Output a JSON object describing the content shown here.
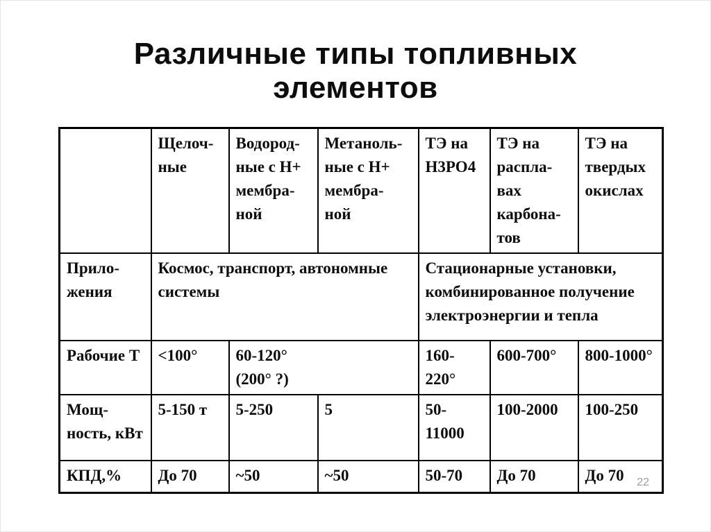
{
  "slide": {
    "title": "Различные типы топливных\nэлементов",
    "page_number": "22"
  },
  "table": {
    "header": {
      "corner": "",
      "columns": [
        "Щелоч-\nные",
        "Водород-\nные с Н+\nмембра-\nной",
        "Метаноль-\nные с Н+\nмембра-\nной",
        "ТЭ на\nН3РО4",
        "ТЭ на\nраспла-\nвах\nкарбона-\nтов",
        "ТЭ на\nтвердых\nокислах"
      ]
    },
    "rows": [
      {
        "label": "Прило-\nжения",
        "cells": [
          "Космос, транспорт, автономные\nсистемы",
          "Стационарные установки,\nкомбинированное получение\nэлектроэнергии и тепла"
        ]
      },
      {
        "label": "Рабочие Т",
        "cells": [
          "<100°",
          "60-120°\n(200° ?)",
          "160-\n220°",
          "600-700°",
          "800-1000°"
        ]
      },
      {
        "label": "Мощ-\nность, кВт",
        "cells": [
          "5-150 т",
          "5-250",
          "5",
          "50-\n11000",
          "100-2000",
          "100-250"
        ]
      },
      {
        "label": "КПД,%",
        "cells": [
          "До 70",
          "~50",
          "~50",
          "50-70",
          "До 70",
          "До 70"
        ]
      }
    ]
  },
  "colors": {
    "background": "#ffffff",
    "text": "#0d0d0d",
    "border": "#000000",
    "page_number": "#9c9c9c"
  }
}
